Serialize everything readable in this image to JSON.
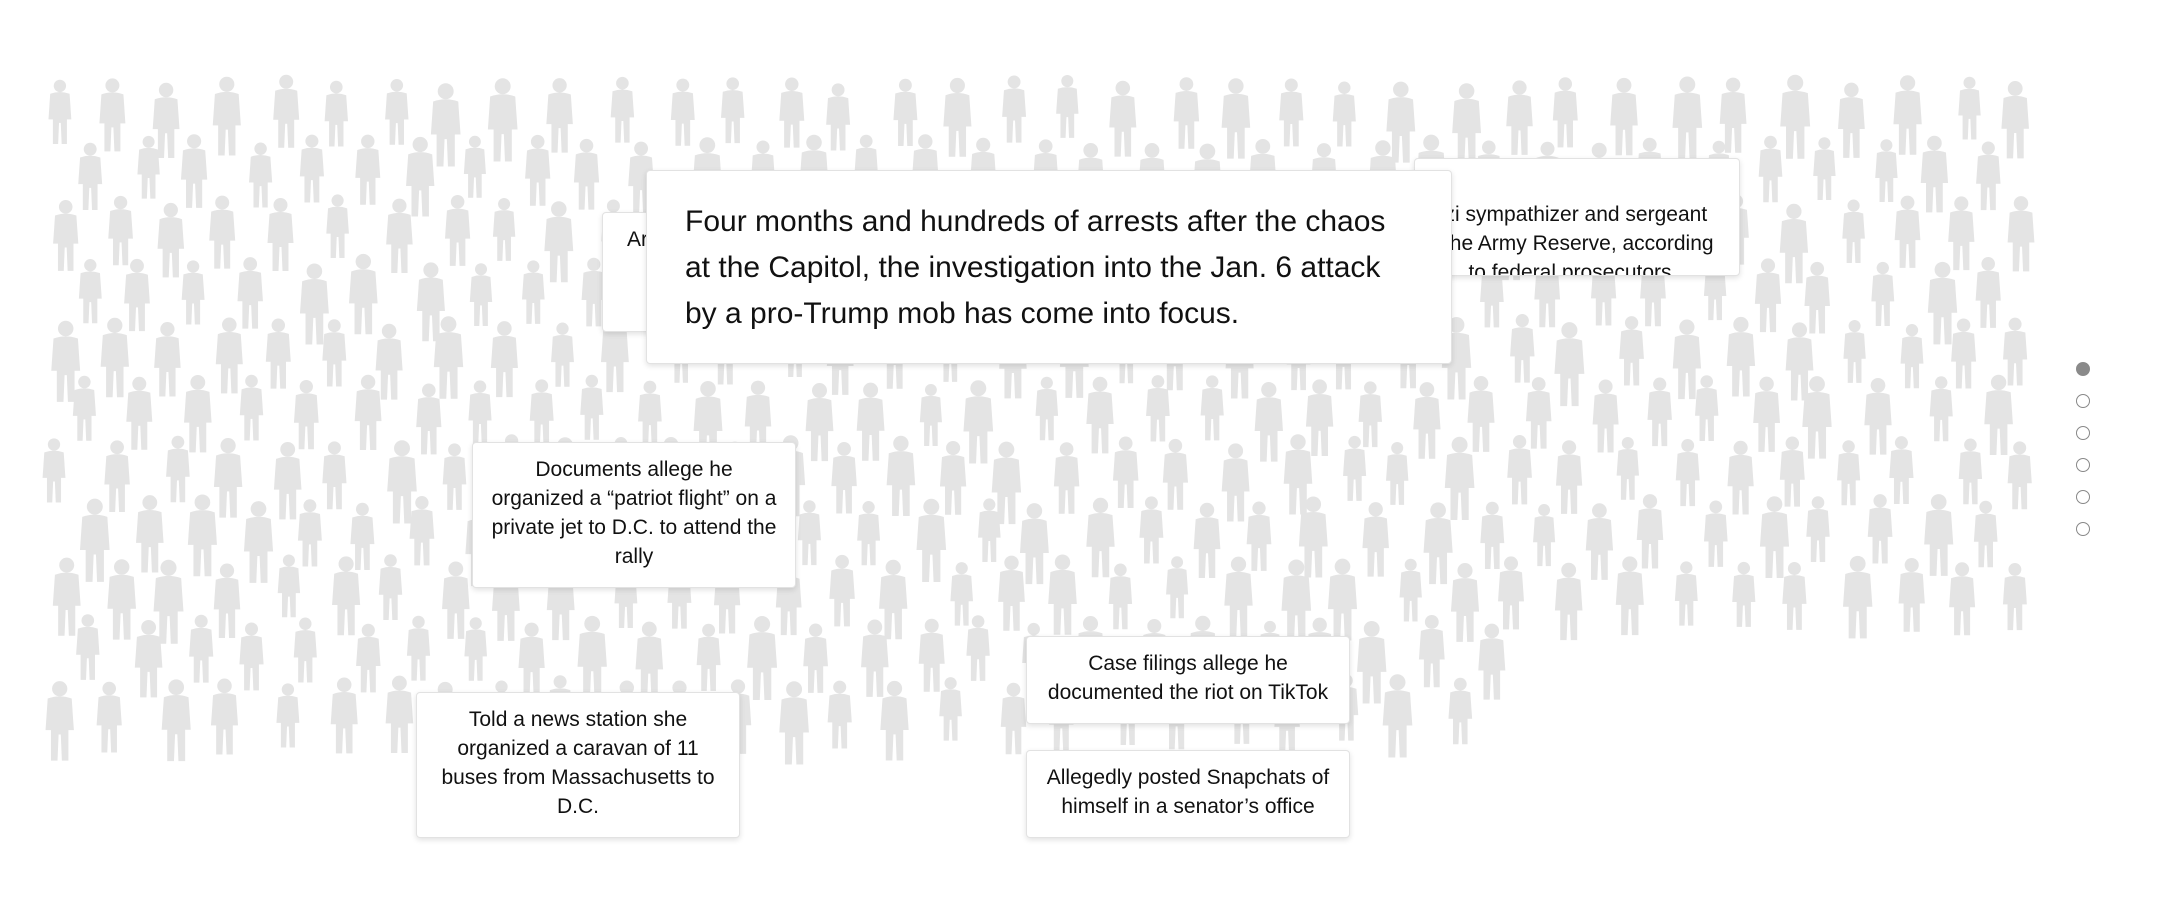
{
  "story": {
    "lead": "Four months and hundreds of arrests after the chaos at the Capitol, the investigation into the Jan. 6 attack by a pro-Trump mob has come into focus.",
    "cards": {
      "partial_left": "Ar",
      "army_reserve": "azi sympathizer and sergeant\nn the Army Reserve, according\nto federal prosecutors",
      "patriot_flight": "Documents allege he organized a “patriot flight” on a private jet to D.C. to attend the rally",
      "caravan": "Told a news station she organized a caravan of 11 buses from Massachusetts to D.C.",
      "tiktok": "Case filings allege he documented the riot on TikTok",
      "snapchat": "Allegedly posted Snapchats of himself in a senator’s office"
    }
  },
  "navigation": {
    "total_steps": 6,
    "active_step": 1
  },
  "colors": {
    "silhouette": "#e4e4e4",
    "dot_active": "#8a8a8a",
    "card_border": "#e2e2e2"
  }
}
